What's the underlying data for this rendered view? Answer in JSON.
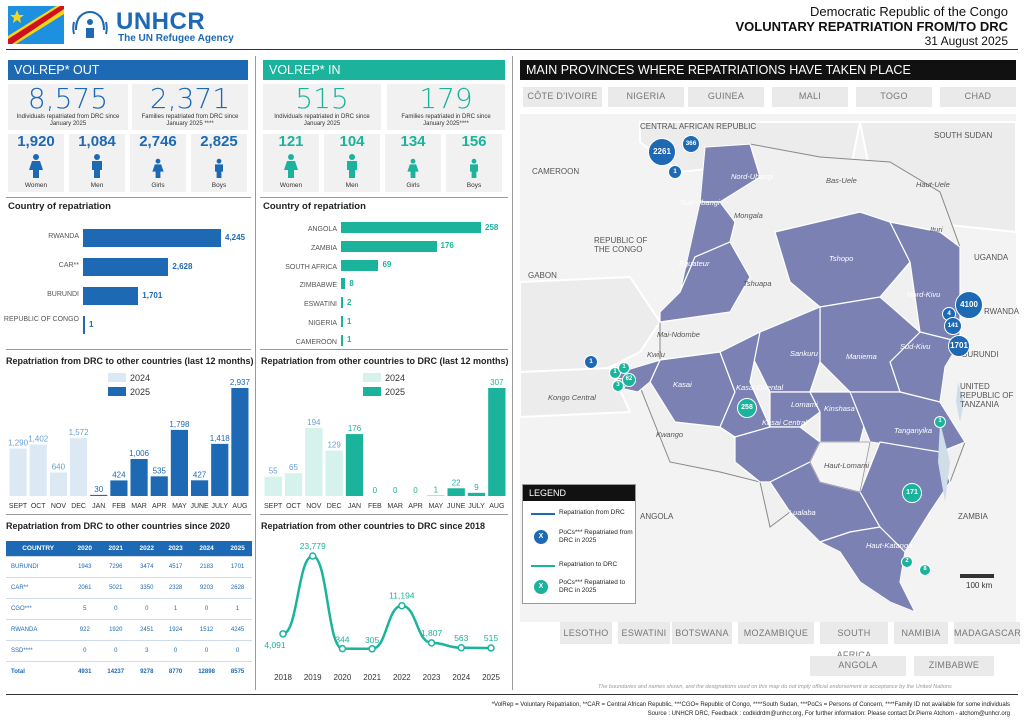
{
  "header": {
    "org": "UNHCR",
    "org_sub": "The UN Refugee Agency",
    "country": "Democratic Republic of the Congo",
    "title": "VOLUNTARY REPATRIATION FROM/TO DRC",
    "date": "31 August 2025"
  },
  "out": {
    "title": "VOLREP* OUT",
    "individuals": "8,575",
    "individuals_cap": "Individuals repatriated from DRC since January 2025",
    "families": "2,371",
    "families_cap": "Families repatriated from DRC since January 2025 ****",
    "demo": [
      {
        "v": "1,920",
        "l": "Women"
      },
      {
        "v": "1,084",
        "l": "Men"
      },
      {
        "v": "2,746",
        "l": "Girls"
      },
      {
        "v": "2,825",
        "l": "Boys"
      }
    ],
    "country_title": "Country of repatriation",
    "countries": [
      {
        "name": "RWANDA",
        "value": 4245,
        "label": "4,245"
      },
      {
        "name": "CAR**",
        "value": 2628,
        "label": "2,628"
      },
      {
        "name": "BURUNDI",
        "value": 1701,
        "label": "1,701"
      },
      {
        "name": "REPUBLIC OF CONGO",
        "value": 1,
        "label": "1"
      }
    ],
    "monthly_title": "Repatriation from DRC to other countries (last 12 months)",
    "legend_2024": "2024",
    "legend_2025": "2025",
    "yearly_title": "Repatriation from DRC to other countries since 2020",
    "table": {
      "headers": [
        "COUNTRY",
        "2020",
        "2021",
        "2022",
        "2023",
        "2024",
        "2025"
      ],
      "rows": [
        [
          "BURUNDI",
          "1943",
          "7296",
          "3474",
          "4517",
          "2183",
          "1701"
        ],
        [
          "CAR**",
          "2061",
          "5021",
          "3350",
          "2328",
          "9203",
          "2628"
        ],
        [
          "CGO***",
          "5",
          "0",
          "0",
          "1",
          "0",
          "1"
        ],
        [
          "RWANDA",
          "922",
          "1920",
          "2451",
          "1924",
          "1512",
          "4245"
        ],
        [
          "SSD****",
          "0",
          "0",
          "3",
          "0",
          "0",
          "0"
        ],
        [
          "Total",
          "4931",
          "14237",
          "9278",
          "8770",
          "12898",
          "8575"
        ]
      ]
    }
  },
  "in": {
    "title": "VOLREP* IN",
    "individuals": "515",
    "individuals_cap": "Individuals repatriated in DRC since January 2025",
    "families": "179",
    "families_cap": "Families repatriated in DRC since January 2025****",
    "demo": [
      {
        "v": "121",
        "l": "Women"
      },
      {
        "v": "104",
        "l": "Men"
      },
      {
        "v": "134",
        "l": "Girls"
      },
      {
        "v": "156",
        "l": "Boys"
      }
    ],
    "country_title": "Country of repatriation",
    "countries": [
      {
        "name": "ANGOLA",
        "value": 258,
        "label": "258"
      },
      {
        "name": "ZAMBIA",
        "value": 176,
        "label": "176"
      },
      {
        "name": "SOUTH AFRICA",
        "value": 69,
        "label": "69"
      },
      {
        "name": "ZIMBABWE",
        "value": 8,
        "label": "8"
      },
      {
        "name": "ESWATINI",
        "value": 2,
        "label": "2"
      },
      {
        "name": "NIGERIA",
        "value": 1,
        "label": "1"
      },
      {
        "name": "CAMEROON",
        "value": 1,
        "label": "1"
      }
    ],
    "monthly_title": "Repatriation from other countries to DRC (last 12 months)",
    "legend_2024": "2024",
    "legend_2025": "2025",
    "yearly_title": "Repatriation from other countries to DRC since 2018"
  },
  "chart_data": [
    {
      "type": "bar",
      "title": "Repatriation from DRC to other countries (last 12 months)",
      "categories": [
        "SEPT",
        "OCT",
        "NOV",
        "DEC",
        "JAN",
        "FEB",
        "MAR",
        "APR",
        "MAY",
        "JUNE",
        "JULY",
        "AUG"
      ],
      "series": [
        {
          "name": "2024",
          "values": [
            1290,
            1402,
            640,
            1572,
            null,
            null,
            null,
            null,
            null,
            null,
            null,
            null
          ]
        },
        {
          "name": "2025",
          "values": [
            null,
            null,
            null,
            null,
            30,
            424,
            1006,
            535,
            1798,
            427,
            1418,
            2937
          ]
        }
      ],
      "labels": [
        "1,290",
        "1,402",
        "640",
        "1,572",
        "30",
        "424",
        "1,006",
        "535",
        "1,798",
        "427",
        "1,418",
        "2,937"
      ]
    },
    {
      "type": "bar",
      "title": "Repatriation from other countries to DRC (last 12 months)",
      "categories": [
        "SEPT",
        "OCT",
        "NOV",
        "DEC",
        "JAN",
        "FEB",
        "MAR",
        "APR",
        "MAY",
        "JUNE",
        "JULY",
        "AUG"
      ],
      "series": [
        {
          "name": "2024",
          "values": [
            55,
            65,
            194,
            129,
            null,
            null,
            null,
            null,
            null,
            null,
            null,
            null
          ]
        },
        {
          "name": "2025",
          "values": [
            null,
            null,
            null,
            null,
            176,
            0,
            0,
            0,
            1,
            22,
            9,
            307
          ]
        }
      ],
      "labels": [
        "55",
        "65",
        "194",
        "129",
        "176",
        "0",
        "0",
        "0",
        "1",
        "22",
        "9",
        "307"
      ]
    },
    {
      "type": "line",
      "title": "Repatriation from other countries to DRC since 2018",
      "x": [
        "2018",
        "2019",
        "2020",
        "2021",
        "2022",
        "2023",
        "2024",
        "2025"
      ],
      "series": [
        {
          "values": [
            4091,
            23779,
            344,
            305,
            11194,
            1807,
            563,
            515
          ]
        }
      ],
      "labels": [
        "4,091",
        "23,779",
        "344",
        "305",
        "11,194",
        "1,807",
        "563",
        "515"
      ]
    }
  ],
  "map": {
    "title": "MAIN PROVINCES WHERE REPATRIATIONS HAVE TAKEN PLACE",
    "top_countries": [
      "CÔTE D'IVOIRE",
      "NIGERIA",
      "GUINEA",
      "MALI",
      "TOGO",
      "CHAD"
    ],
    "bottom_countries": [
      "LESOTHO",
      "ESWATINI",
      "BOTSWANA",
      "MOZAMBIQUE",
      "SOUTH AFRICA",
      "NAMIBIA",
      "MADAGASCAR"
    ],
    "bottom2": [
      "ANGOLA",
      "ZIMBABWE"
    ],
    "neighbours": [
      "CENTRAL AFRICAN REPUBLIC",
      "SOUTH SUDAN",
      "CAMEROON",
      "REPUBLIC OF THE CONGO",
      "GABON",
      "UGANDA",
      "RWANDA",
      "BURUNDI",
      "UNITED REPUBLIC OF TANZANIA",
      "ZAMBIA",
      "ANGOLA"
    ],
    "provinces": [
      "Nord-Ubangi",
      "Sud-Ubangi",
      "Mongala",
      "Bas-Uele",
      "Haut-Uele",
      "Ituri",
      "Equateur",
      "Tshopo",
      "Tshuapa",
      "Nord-Kivu",
      "Mai-Ndombe",
      "Sankuru",
      "Maniema",
      "Sud-Kivu",
      "Kwilu",
      "Kasai",
      "Kasai Oriental",
      "Lomami",
      "Kinshasa",
      "Kongo Central",
      "Kwango",
      "Kasai Central",
      "Tanganyika",
      "Haut-Lomami",
      "Lualaba",
      "Haut-Katanga"
    ],
    "circles_out": [
      "2261",
      "366",
      "1",
      "4100",
      "4",
      "141",
      "1701",
      "1"
    ],
    "circles_in": [
      "1",
      "1",
      "1",
      "62",
      "3",
      "258",
      "1",
      "171",
      "2",
      "8"
    ],
    "legend_title": "LEGEND",
    "legend_items": [
      "Repatriation from DRC",
      "PoCs*** Repatriated from DRC in 2025",
      "Repatriation to DRC",
      "PoCs*** Repatriated to DRC in 2025"
    ],
    "legend_x": "X",
    "scale": "100 km",
    "disclaimer": "The boundaries and names shown, and the designations used on this map do not imply official endorsement or acceptance by the United Nations"
  },
  "footer": {
    "line1": "*VolRep = Voluntary Repatriation, **CAR = Central African Republic, ***CGO= Republic of Congo, ****South Sudan, ***PoCs = Persons of Concern,  ****Family ID not available for some individuals",
    "line2": "Source : UNHCR DRC, Feedback : codkidrdm@unhcr.org,     For further information: Please contact Dr.Pierre Atchom - atchom@unhcr.org"
  },
  "colors": {
    "blue": "#1d69b4",
    "teal": "#1bb39c",
    "light_blue": "#dce8f4",
    "light_teal": "#d6f2ec",
    "province": "#7b82b3"
  }
}
